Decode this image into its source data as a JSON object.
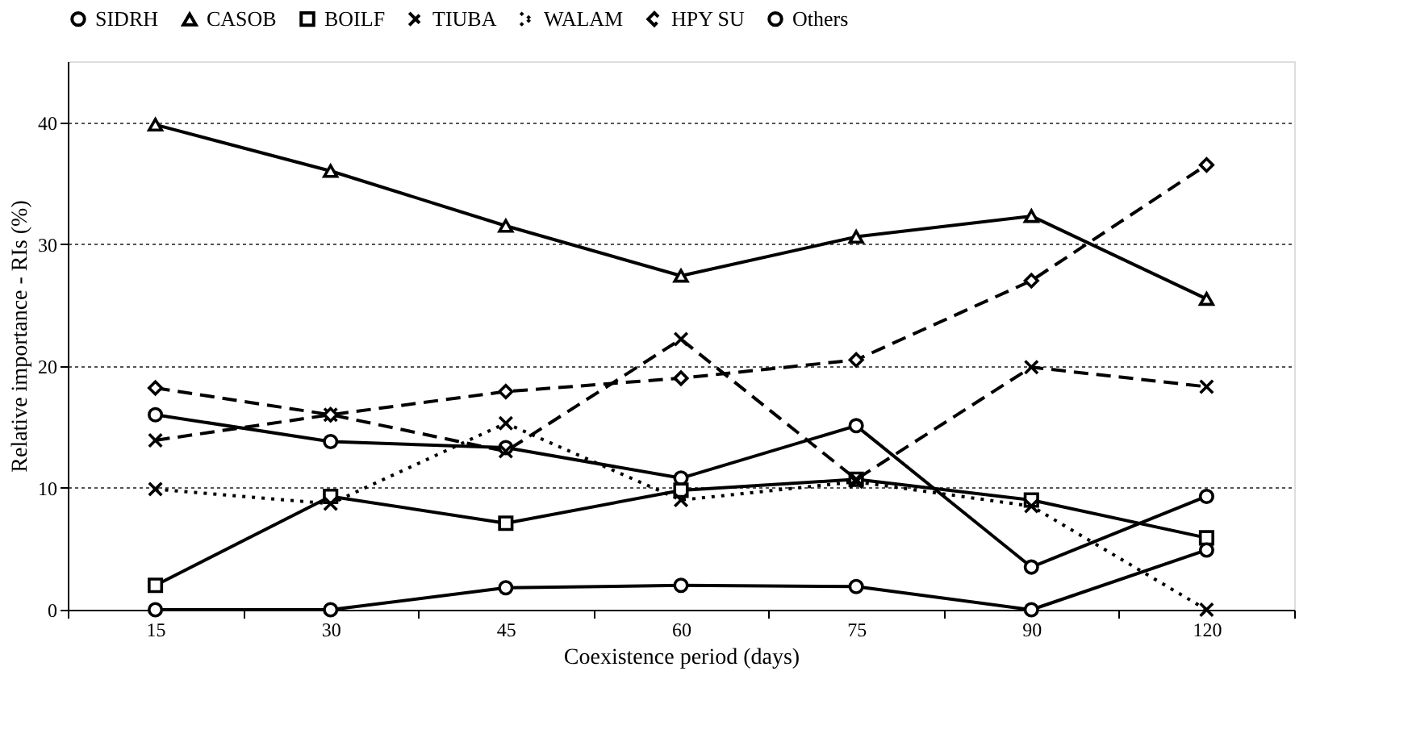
{
  "chart_data": {
    "type": "line",
    "xlabel": "Coexistence period (days)",
    "ylabel": "Relative  importance - RIs (%)",
    "categories": [
      "15",
      "30",
      "45",
      "60",
      "75",
      "90",
      "120"
    ],
    "ylim": [
      0,
      45
    ],
    "yticks": [
      0,
      10,
      20,
      30,
      40
    ],
    "grid": "y",
    "legend": "top",
    "series": [
      {
        "name": "SIDRH",
        "color": "#000000",
        "marker": "circle",
        "line_style": "solid",
        "values": [
          16,
          13.8,
          13.3,
          10.8,
          15.1,
          3.5,
          9.3
        ]
      },
      {
        "name": "CASOB",
        "color": "#000000",
        "marker": "triangle",
        "line_style": "solid",
        "values": [
          39.8,
          36,
          31.5,
          27.4,
          30.6,
          32.3,
          25.5
        ]
      },
      {
        "name": "BOILF",
        "color": "#000000",
        "marker": "square",
        "line_style": "solid",
        "values": [
          2,
          9.3,
          7.1,
          9.8,
          10.7,
          9,
          5.9
        ]
      },
      {
        "name": "TIUBA",
        "color": "#000000",
        "marker": "cross",
        "line_style": "dashed",
        "values": [
          13.9,
          16,
          13,
          22.2,
          10.7,
          19.9,
          18.3
        ]
      },
      {
        "name": "WALAM",
        "color": "#000000",
        "marker": "cross",
        "line_style": "dotted",
        "values": [
          9.9,
          8.7,
          15.3,
          9,
          10.5,
          8.5,
          0
        ]
      },
      {
        "name": "HPY SU",
        "color": "#000000",
        "marker": "diamond",
        "line_style": "dashed",
        "values": [
          18.2,
          16,
          17.9,
          19,
          20.5,
          27,
          36.5
        ]
      },
      {
        "name": "Others",
        "color": "#000000",
        "marker": "circle",
        "line_style": "solid",
        "values": [
          0,
          0,
          1.8,
          2,
          1.9,
          0,
          4.9
        ]
      }
    ]
  }
}
